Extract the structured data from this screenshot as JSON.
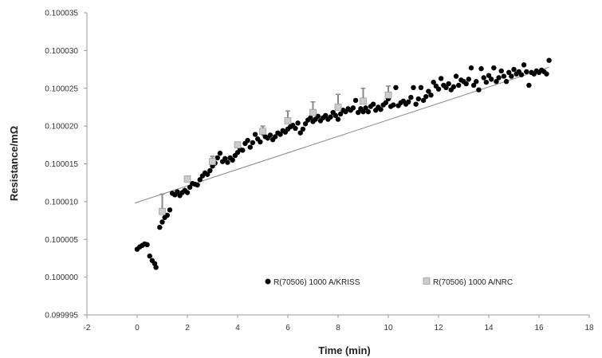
{
  "chart_data": {
    "type": "scatter",
    "title": "",
    "xlabel": "Time (min)",
    "ylabel": "Resistance/mΩ",
    "xlim": [
      -2,
      18
    ],
    "ylim": [
      0.099995,
      0.100035
    ],
    "xticks": [
      "-2",
      "0",
      "2",
      "4",
      "6",
      "8",
      "10",
      "12",
      "14",
      "16",
      "18"
    ],
    "yticks": [
      "0.099995",
      "0.100000",
      "0.100005",
      "0.100010",
      "0.100015",
      "0.100020",
      "0.100025",
      "0.100030",
      "0.100035"
    ],
    "grid": false,
    "legend_position": "bottom-center",
    "series": [
      {
        "name": "R(70506) 1000 A/KRISS",
        "marker": "circle",
        "color": "#000000",
        "points": [
          [
            0.0,
            0.1000037
          ],
          [
            0.1,
            0.100004
          ],
          [
            0.2,
            0.1000042
          ],
          [
            0.3,
            0.1000044
          ],
          [
            0.4,
            0.1000043
          ],
          [
            0.5,
            0.1000028
          ],
          [
            0.6,
            0.1000022
          ],
          [
            0.7,
            0.1000018
          ],
          [
            0.75,
            0.1000013
          ],
          [
            0.9,
            0.1000066
          ],
          [
            1.0,
            0.1000073
          ],
          [
            1.1,
            0.1000079
          ],
          [
            1.2,
            0.1000082
          ],
          [
            1.3,
            0.1000089
          ],
          [
            1.4,
            0.1000111
          ],
          [
            1.5,
            0.1000109
          ],
          [
            1.6,
            0.1000113
          ],
          [
            1.7,
            0.1000108
          ],
          [
            1.8,
            0.1000112
          ],
          [
            1.9,
            0.1000115
          ],
          [
            2.0,
            0.1000112
          ],
          [
            2.1,
            0.1000119
          ],
          [
            2.2,
            0.1000124
          ],
          [
            2.3,
            0.1000123
          ],
          [
            2.4,
            0.1000122
          ],
          [
            2.5,
            0.1000129
          ],
          [
            2.6,
            0.1000134
          ],
          [
            2.7,
            0.1000138
          ],
          [
            2.8,
            0.1000136
          ],
          [
            2.9,
            0.1000141
          ],
          [
            3.0,
            0.1000147
          ],
          [
            3.1,
            0.1000151
          ],
          [
            3.2,
            0.1000158
          ],
          [
            3.3,
            0.1000164
          ],
          [
            3.4,
            0.1000153
          ],
          [
            3.5,
            0.1000157
          ],
          [
            3.6,
            0.1000152
          ],
          [
            3.7,
            0.1000158
          ],
          [
            3.8,
            0.1000155
          ],
          [
            3.9,
            0.1000161
          ],
          [
            4.0,
            0.1000165
          ],
          [
            4.1,
            0.1000169
          ],
          [
            4.2,
            0.1000168
          ],
          [
            4.3,
            0.1000177
          ],
          [
            4.4,
            0.1000181
          ],
          [
            4.5,
            0.1000172
          ],
          [
            4.6,
            0.1000178
          ],
          [
            4.7,
            0.1000189
          ],
          [
            4.8,
            0.1000183
          ],
          [
            4.9,
            0.1000179
          ],
          [
            5.0,
            0.1000191
          ],
          [
            5.1,
            0.1000186
          ],
          [
            5.2,
            0.1000184
          ],
          [
            5.3,
            0.1000188
          ],
          [
            5.4,
            0.1000182
          ],
          [
            5.5,
            0.1000186
          ],
          [
            5.6,
            0.1000191
          ],
          [
            5.7,
            0.1000189
          ],
          [
            5.8,
            0.1000194
          ],
          [
            5.9,
            0.1000192
          ],
          [
            6.0,
            0.1000196
          ],
          [
            6.1,
            0.1000199
          ],
          [
            6.2,
            0.1000201
          ],
          [
            6.3,
            0.1000197
          ],
          [
            6.4,
            0.1000204
          ],
          [
            6.5,
            0.1000191
          ],
          [
            6.6,
            0.1000196
          ],
          [
            6.7,
            0.1000203
          ],
          [
            6.8,
            0.1000208
          ],
          [
            6.9,
            0.1000211
          ],
          [
            7.0,
            0.1000206
          ],
          [
            7.1,
            0.1000209
          ],
          [
            7.2,
            0.1000213
          ],
          [
            7.3,
            0.1000207
          ],
          [
            7.4,
            0.1000211
          ],
          [
            7.5,
            0.1000214
          ],
          [
            7.6,
            0.1000209
          ],
          [
            7.7,
            0.1000212
          ],
          [
            7.8,
            0.1000218
          ],
          [
            7.9,
            0.1000214
          ],
          [
            8.0,
            0.1000209
          ],
          [
            8.1,
            0.1000216
          ],
          [
            8.2,
            0.1000221
          ],
          [
            8.3,
            0.1000219
          ],
          [
            8.4,
            0.1000223
          ],
          [
            8.5,
            0.1000221
          ],
          [
            8.6,
            0.1000224
          ],
          [
            8.7,
            0.1000234
          ],
          [
            8.8,
            0.1000218
          ],
          [
            8.9,
            0.1000223
          ],
          [
            9.0,
            0.1000219
          ],
          [
            9.1,
            0.1000224
          ],
          [
            9.2,
            0.1000219
          ],
          [
            9.3,
            0.1000226
          ],
          [
            9.4,
            0.1000229
          ],
          [
            9.5,
            0.1000221
          ],
          [
            9.6,
            0.1000225
          ],
          [
            9.7,
            0.1000222
          ],
          [
            9.8,
            0.1000228
          ],
          [
            9.9,
            0.1000231
          ],
          [
            10.0,
            0.1000236
          ],
          [
            10.1,
            0.1000226
          ],
          [
            10.2,
            0.1000228
          ],
          [
            10.3,
            0.1000251
          ],
          [
            10.4,
            0.1000227
          ],
          [
            10.5,
            0.1000231
          ],
          [
            10.6,
            0.1000233
          ],
          [
            10.7,
            0.1000229
          ],
          [
            10.8,
            0.1000232
          ],
          [
            10.9,
            0.1000238
          ],
          [
            11.0,
            0.1000251
          ],
          [
            11.1,
            0.1000229
          ],
          [
            11.2,
            0.1000236
          ],
          [
            11.3,
            0.1000251
          ],
          [
            11.4,
            0.1000234
          ],
          [
            11.5,
            0.1000239
          ],
          [
            11.6,
            0.1000246
          ],
          [
            11.7,
            0.1000241
          ],
          [
            11.8,
            0.1000258
          ],
          [
            11.9,
            0.1000253
          ],
          [
            12.0,
            0.1000249
          ],
          [
            12.1,
            0.1000263
          ],
          [
            12.2,
            0.1000254
          ],
          [
            12.3,
            0.1000251
          ],
          [
            12.4,
            0.1000256
          ],
          [
            12.5,
            0.1000248
          ],
          [
            12.6,
            0.1000252
          ],
          [
            12.7,
            0.1000266
          ],
          [
            12.8,
            0.1000254
          ],
          [
            12.9,
            0.1000261
          ],
          [
            13.0,
            0.1000259
          ],
          [
            13.1,
            0.1000256
          ],
          [
            13.2,
            0.1000262
          ],
          [
            13.3,
            0.1000277
          ],
          [
            13.4,
            0.1000254
          ],
          [
            13.5,
            0.1000259
          ],
          [
            13.6,
            0.1000248
          ],
          [
            13.7,
            0.1000276
          ],
          [
            13.8,
            0.1000264
          ],
          [
            13.9,
            0.1000258
          ],
          [
            14.0,
            0.1000267
          ],
          [
            14.1,
            0.1000262
          ],
          [
            14.2,
            0.1000277
          ],
          [
            14.3,
            0.1000259
          ],
          [
            14.4,
            0.1000264
          ],
          [
            14.5,
            0.1000273
          ],
          [
            14.6,
            0.1000266
          ],
          [
            14.7,
            0.1000259
          ],
          [
            14.8,
            0.1000271
          ],
          [
            14.9,
            0.1000266
          ],
          [
            15.0,
            0.1000275
          ],
          [
            15.1,
            0.1000269
          ],
          [
            15.2,
            0.1000272
          ],
          [
            15.3,
            0.1000268
          ],
          [
            15.4,
            0.1000281
          ],
          [
            15.5,
            0.1000272
          ],
          [
            15.6,
            0.1000254
          ],
          [
            15.7,
            0.1000271
          ],
          [
            15.8,
            0.1000269
          ],
          [
            15.9,
            0.1000273
          ],
          [
            16.0,
            0.1000271
          ],
          [
            16.1,
            0.1000274
          ],
          [
            16.2,
            0.1000272
          ],
          [
            16.3,
            0.1000269
          ],
          [
            16.4,
            0.1000287
          ]
        ]
      },
      {
        "name": "R(70506) 1000 A/NRC",
        "marker": "square",
        "color": "#cccccc",
        "points": [
          [
            1.0,
            0.1000087
          ],
          [
            2.0,
            0.100013
          ],
          [
            3.0,
            0.1000153
          ],
          [
            4.0,
            0.1000175
          ],
          [
            5.0,
            0.1000193
          ],
          [
            6.0,
            0.1000207
          ],
          [
            7.0,
            0.1000218
          ],
          [
            8.0,
            0.1000225
          ],
          [
            9.0,
            0.1000233
          ],
          [
            10.0,
            0.1000241
          ]
        ],
        "error_plus": [
          2.3e-06,
          3e-07,
          7e-07,
          2e-07,
          7e-07,
          1.3e-06,
          1.4e-06,
          1.7e-06,
          1.7e-06,
          1.2e-06
        ]
      }
    ],
    "trendline": {
      "type": "linear",
      "color": "#888888",
      "from": [
        -0.1,
        0.1000098
      ],
      "to": [
        16.4,
        0.1000278
      ]
    }
  }
}
